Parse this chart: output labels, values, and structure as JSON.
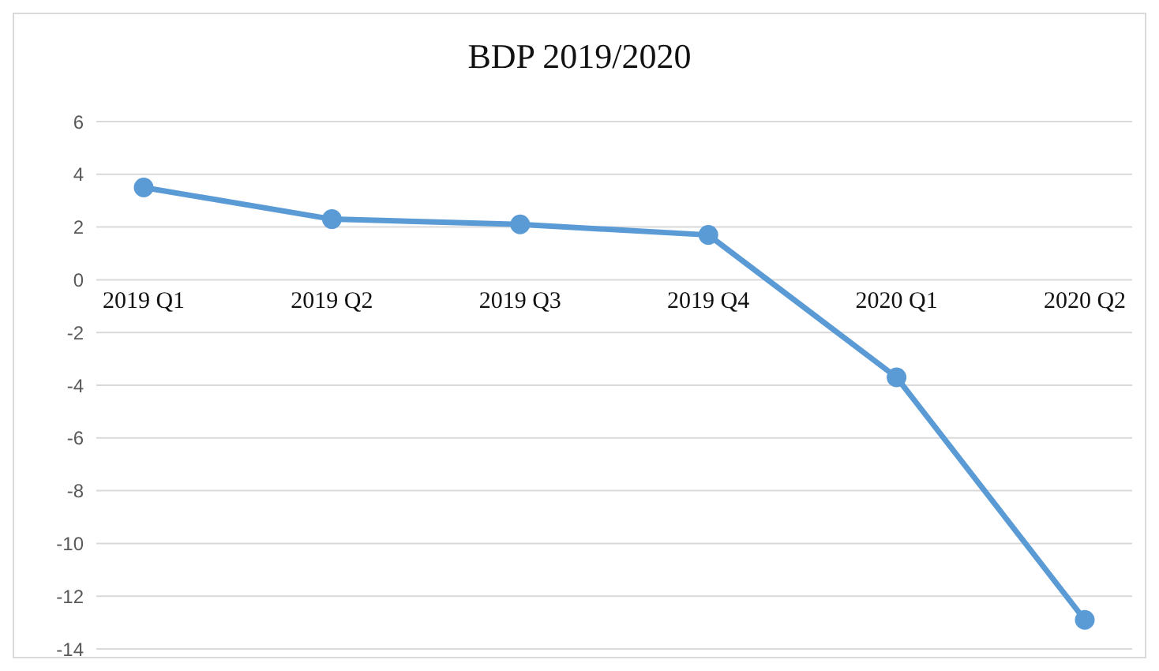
{
  "chart_data": {
    "type": "line",
    "title": "BDP 2019/2020",
    "categories": [
      "2019 Q1",
      "2019 Q2",
      "2019 Q3",
      "2019 Q4",
      "2020 Q1",
      "2020 Q2"
    ],
    "series": [
      {
        "color": "#5b9bd5",
        "values": [
          3.5,
          2.3,
          2.1,
          1.7,
          -3.7,
          -12.9
        ]
      }
    ],
    "ylim": [
      -14,
      6
    ],
    "yticks": [
      -14,
      -12,
      -10,
      -8,
      -6,
      -4,
      -2,
      0,
      2,
      4,
      6
    ],
    "grid": "y",
    "marker": "circle",
    "line_style": "solid",
    "legend": false
  }
}
